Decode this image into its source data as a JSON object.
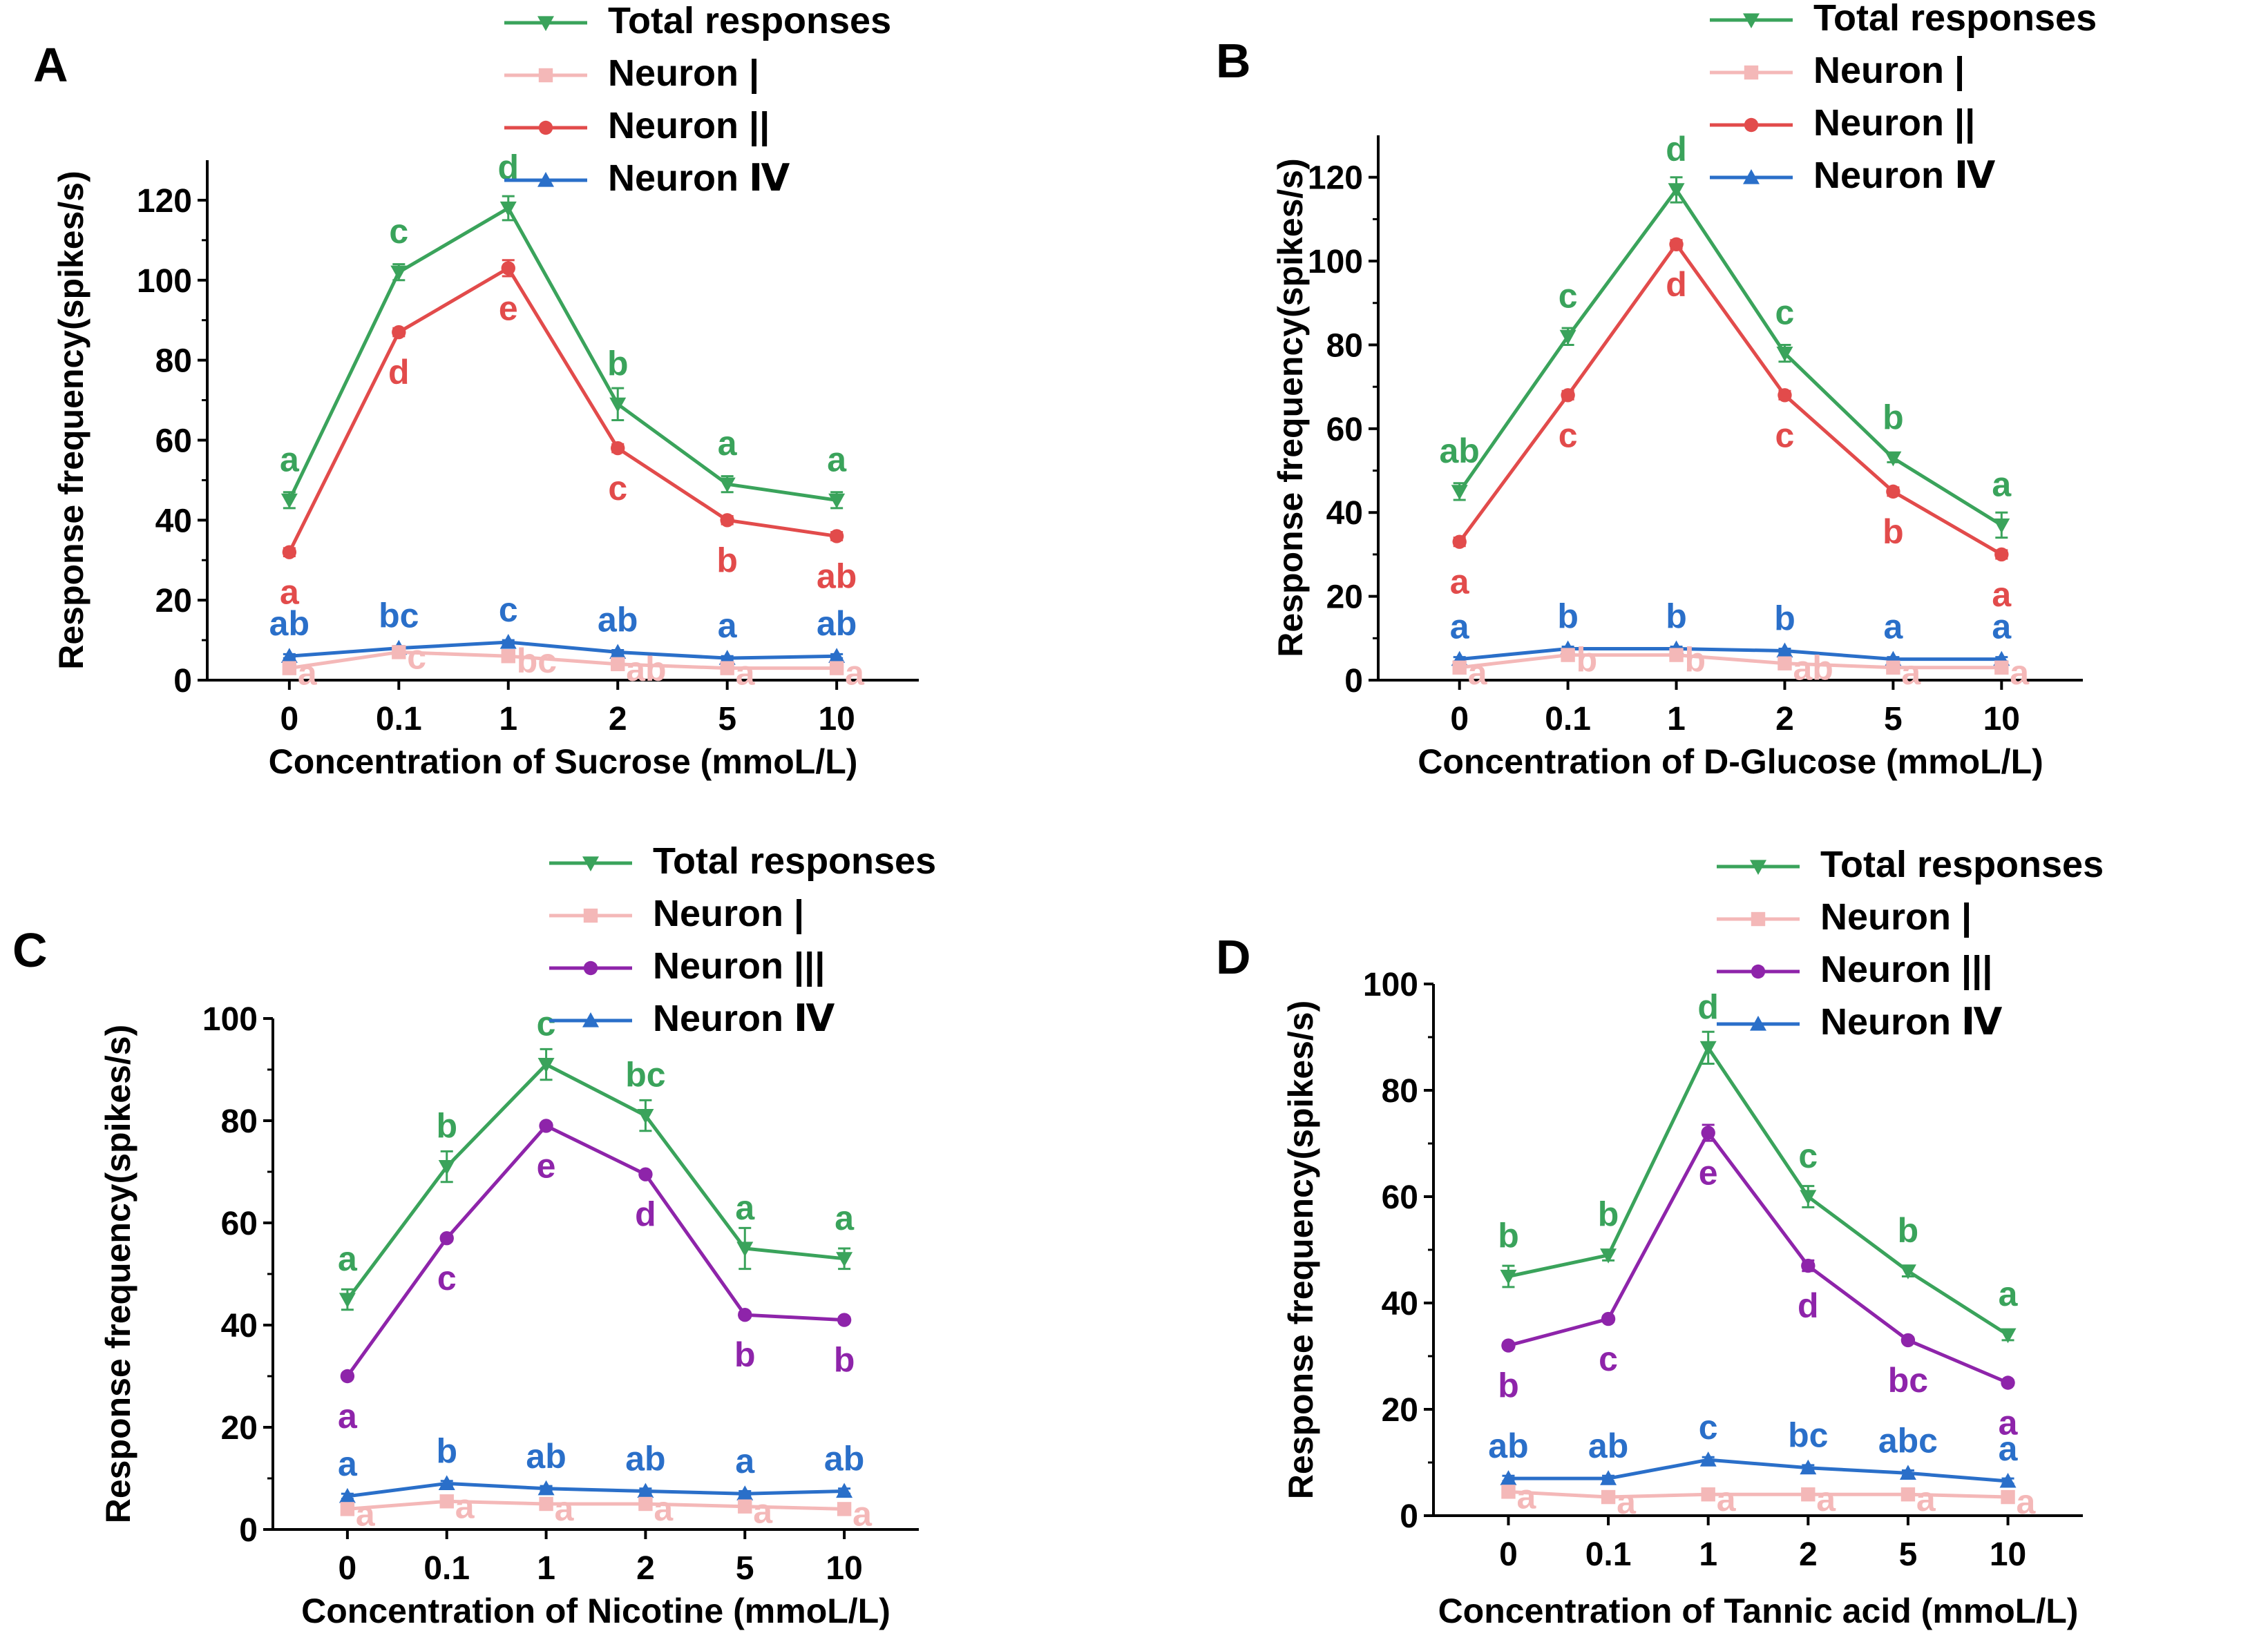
{
  "figure": {
    "y_axis_label": "Response frequency(spikes/s)",
    "colors": {
      "total": "#3aa35b",
      "neuron1": "#f4b8b8",
      "neuron2": "#e24b4b",
      "neuron3": "#8e24aa",
      "neuron4": "#2a6fc9",
      "axis": "#000000"
    }
  },
  "chart_data": [
    {
      "type": "line",
      "panel": "A",
      "xlabel": "Concentration of Sucrose (mmoL/L)",
      "ylabel": "Response frequency(spikes/s)",
      "categories": [
        "0",
        "0.1",
        "1",
        "2",
        "5",
        "10"
      ],
      "ylim": [
        0,
        130
      ],
      "yticks": [
        0,
        20,
        40,
        60,
        80,
        100,
        120
      ],
      "legend": [
        "Total responses",
        "Neuron |",
        "Neuron ||",
        "Neuron Ⅳ"
      ],
      "series": [
        {
          "key": "total",
          "name": "Total responses",
          "marker": "triangle-down",
          "values": [
            45,
            102,
            118,
            69,
            49,
            45
          ],
          "errors": [
            2,
            2,
            3,
            4,
            2,
            2
          ],
          "letters": [
            "a",
            "c",
            "d",
            "b",
            "a",
            "a"
          ],
          "letter_pos": "above"
        },
        {
          "key": "neuron1",
          "name": "Neuron |",
          "marker": "square",
          "values": [
            3,
            7,
            6,
            4,
            3,
            3
          ],
          "errors": [
            0.5,
            0.5,
            0.5,
            0.5,
            0.5,
            0.5
          ],
          "letters": [
            "a",
            "c",
            "bc",
            "ab",
            "a",
            "a"
          ],
          "letter_pos": "right"
        },
        {
          "key": "neuron2",
          "name": "Neuron ||",
          "marker": "circle",
          "values": [
            32,
            87,
            103,
            58,
            40,
            36
          ],
          "errors": [
            1,
            1,
            2,
            1,
            1,
            1
          ],
          "letters": [
            "a",
            "d",
            "e",
            "c",
            "b",
            "ab"
          ],
          "letter_pos": "below"
        },
        {
          "key": "neuron4",
          "name": "Neuron Ⅳ",
          "marker": "triangle-up",
          "values": [
            6,
            8,
            9.5,
            7,
            5.5,
            6
          ],
          "errors": [
            0.5,
            0.5,
            0.5,
            0.5,
            0.5,
            0.5
          ],
          "letters": [
            "ab",
            "bc",
            "c",
            "ab",
            "a",
            "ab"
          ],
          "letter_pos": "above-low"
        }
      ]
    },
    {
      "type": "line",
      "panel": "B",
      "xlabel": "Concentration of D-Glucose (mmoL/L)",
      "ylabel": "Response frequency(spikes/s)",
      "categories": [
        "0",
        "0.1",
        "1",
        "2",
        "5",
        "10"
      ],
      "ylim": [
        0,
        130
      ],
      "yticks": [
        0,
        20,
        40,
        60,
        80,
        100,
        120
      ],
      "legend": [
        "Total responses",
        "Neuron |",
        "Neuron ||",
        "Neuron Ⅳ"
      ],
      "series": [
        {
          "key": "total",
          "name": "Total responses",
          "marker": "triangle-down",
          "values": [
            45,
            82,
            117,
            78,
            53,
            37
          ],
          "errors": [
            2,
            2,
            3,
            2,
            1,
            3
          ],
          "letters": [
            "ab",
            "c",
            "d",
            "c",
            "b",
            "a"
          ],
          "letter_pos": "above"
        },
        {
          "key": "neuron1",
          "name": "Neuron |",
          "marker": "square",
          "values": [
            3,
            6,
            6,
            4,
            3,
            3
          ],
          "errors": [
            0.5,
            0.5,
            0.5,
            0.5,
            0.5,
            0.5
          ],
          "letters": [
            "a",
            "b",
            "b",
            "ab",
            "a",
            "a"
          ],
          "letter_pos": "right"
        },
        {
          "key": "neuron2",
          "name": "Neuron ||",
          "marker": "circle",
          "values": [
            33,
            68,
            104,
            68,
            45,
            30
          ],
          "errors": [
            1,
            1,
            1,
            1,
            1,
            1
          ],
          "letters": [
            "a",
            "c",
            "d",
            "c",
            "b",
            "a"
          ],
          "letter_pos": "below"
        },
        {
          "key": "neuron4",
          "name": "Neuron Ⅳ",
          "marker": "triangle-up",
          "values": [
            5,
            7.5,
            7.5,
            7,
            5,
            5
          ],
          "errors": [
            0.5,
            0.5,
            0.5,
            0.5,
            0.5,
            0.5
          ],
          "letters": [
            "a",
            "b",
            "b",
            "b",
            "a",
            "a"
          ],
          "letter_pos": "above-low"
        }
      ]
    },
    {
      "type": "line",
      "panel": "C",
      "xlabel": "Concentration of Nicotine (mmoL/L)",
      "ylabel": "Response frequency(spikes/s)",
      "categories": [
        "0",
        "0.1",
        "1",
        "2",
        "5",
        "10"
      ],
      "ylim": [
        0,
        100
      ],
      "yticks": [
        0,
        20,
        40,
        60,
        80,
        100
      ],
      "legend": [
        "Total responses",
        "Neuron |",
        "Neuron |||",
        "Neuron Ⅳ"
      ],
      "series": [
        {
          "key": "total",
          "name": "Total responses",
          "marker": "triangle-down",
          "values": [
            45,
            71,
            91,
            81,
            55,
            53
          ],
          "errors": [
            2,
            3,
            3,
            3,
            4,
            2
          ],
          "letters": [
            "a",
            "b",
            "c",
            "bc",
            "a",
            "a"
          ],
          "letter_pos": "above"
        },
        {
          "key": "neuron1",
          "name": "Neuron |",
          "marker": "square",
          "values": [
            4,
            5.5,
            5,
            5,
            4.5,
            4
          ],
          "errors": [
            0.5,
            0.5,
            0.5,
            0.5,
            0.5,
            0.5
          ],
          "letters": [
            "a",
            "a",
            "a",
            "a",
            "a",
            "a"
          ],
          "letter_pos": "right"
        },
        {
          "key": "neuron3",
          "name": "Neuron |||",
          "marker": "circle",
          "values": [
            30,
            57,
            79,
            69.5,
            42,
            41
          ],
          "errors": [
            0.5,
            0.5,
            0.5,
            0.5,
            0.5,
            0.5
          ],
          "letters": [
            "a",
            "c",
            "e",
            "d",
            "b",
            "b"
          ],
          "letter_pos": "below"
        },
        {
          "key": "neuron4",
          "name": "Neuron Ⅳ",
          "marker": "triangle-up",
          "values": [
            6.5,
            9,
            8,
            7.5,
            7,
            7.5
          ],
          "errors": [
            0.5,
            0.5,
            0.5,
            0.5,
            0.5,
            0.5
          ],
          "letters": [
            "a",
            "b",
            "ab",
            "ab",
            "a",
            "ab"
          ],
          "letter_pos": "above-low"
        }
      ]
    },
    {
      "type": "line",
      "panel": "D",
      "xlabel": "Concentration of Tannic acid (mmoL/L)",
      "ylabel": "Response frequency(spikes/s)",
      "categories": [
        "0",
        "0.1",
        "1",
        "2",
        "5",
        "10"
      ],
      "ylim": [
        0,
        100
      ],
      "yticks": [
        0,
        20,
        40,
        60,
        80,
        100
      ],
      "legend": [
        "Total responses",
        "Neuron |",
        "Neuron |||",
        "Neuron Ⅳ"
      ],
      "series": [
        {
          "key": "total",
          "name": "Total responses",
          "marker": "triangle-down",
          "values": [
            45,
            49,
            88,
            60,
            46,
            34
          ],
          "errors": [
            2,
            1,
            3,
            2,
            1,
            1
          ],
          "letters": [
            "b",
            "b",
            "d",
            "c",
            "b",
            "a"
          ],
          "letter_pos": "above"
        },
        {
          "key": "neuron1",
          "name": "Neuron |",
          "marker": "square",
          "values": [
            4.5,
            3.5,
            4,
            4,
            4,
            3.5
          ],
          "errors": [
            0.5,
            0.5,
            0.5,
            0.5,
            0.5,
            0.5
          ],
          "letters": [
            "a",
            "a",
            "a",
            "a",
            "a",
            "a"
          ],
          "letter_pos": "right"
        },
        {
          "key": "neuron3",
          "name": "Neuron |||",
          "marker": "circle",
          "values": [
            32,
            37,
            72,
            47,
            33,
            25
          ],
          "errors": [
            0.5,
            0.5,
            1.5,
            1,
            0.5,
            0.5
          ],
          "letters": [
            "b",
            "c",
            "e",
            "d",
            "bc",
            "a"
          ],
          "letter_pos": "below"
        },
        {
          "key": "neuron4",
          "name": "Neuron Ⅳ",
          "marker": "triangle-up",
          "values": [
            7,
            7,
            10.5,
            9,
            8,
            6.5
          ],
          "errors": [
            0.5,
            0.5,
            0.5,
            0.5,
            0.5,
            0.5
          ],
          "letters": [
            "ab",
            "ab",
            "c",
            "bc",
            "abc",
            "a"
          ],
          "letter_pos": "above-low"
        }
      ]
    }
  ]
}
